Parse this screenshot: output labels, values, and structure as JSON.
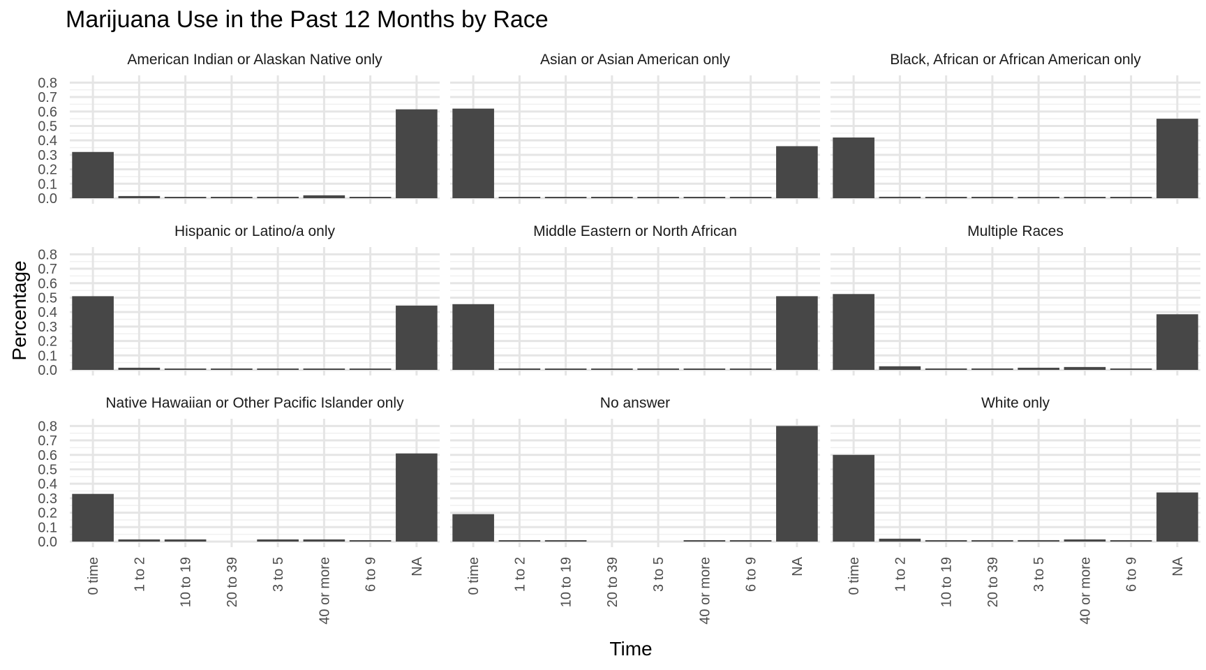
{
  "chart_data": {
    "type": "bar",
    "title": "Marijuana Use in the Past 12 Months by Race",
    "xlabel": "Time",
    "ylabel": "Percentage",
    "ylim": [
      0,
      0.85
    ],
    "yticks": [
      "0.0",
      "0.1",
      "0.2",
      "0.3",
      "0.4",
      "0.5",
      "0.6",
      "0.7",
      "0.8"
    ],
    "categories": [
      "0 time",
      "1 to 2",
      "10 to 19",
      "20 to 39",
      "3 to 5",
      "40 or more",
      "6 to 9",
      "NA"
    ],
    "grid": true,
    "bar_color": "#474747",
    "panels": [
      {
        "name": "American Indian or Alaskan Native only",
        "values": [
          0.32,
          0.015,
          0.005,
          0.004,
          0.01,
          0.02,
          0.005,
          0.615
        ]
      },
      {
        "name": "Asian or Asian American only",
        "values": [
          0.62,
          0.005,
          0.003,
          0.002,
          0.004,
          0.004,
          0.003,
          0.36
        ]
      },
      {
        "name": "Black, African or African American only",
        "values": [
          0.42,
          0.01,
          0.004,
          0.003,
          0.005,
          0.004,
          0.003,
          0.55
        ]
      },
      {
        "name": "Hispanic or Latino/a only",
        "values": [
          0.51,
          0.015,
          0.005,
          0.004,
          0.005,
          0.008,
          0.004,
          0.445
        ]
      },
      {
        "name": "Middle Eastern or North African",
        "values": [
          0.455,
          0.01,
          0.004,
          0.003,
          0.01,
          0.005,
          0.003,
          0.51
        ]
      },
      {
        "name": "Multiple Races",
        "values": [
          0.525,
          0.025,
          0.01,
          0.01,
          0.015,
          0.02,
          0.01,
          0.385
        ]
      },
      {
        "name": "Native Hawaiian or Other Pacific Islander only",
        "values": [
          0.33,
          0.015,
          0.015,
          0.0,
          0.015,
          0.015,
          0.005,
          0.61
        ]
      },
      {
        "name": "No answer",
        "values": [
          0.19,
          0.005,
          0.005,
          0.0,
          0.0,
          0.005,
          0.005,
          0.8
        ]
      },
      {
        "name": "White only",
        "values": [
          0.6,
          0.02,
          0.005,
          0.005,
          0.01,
          0.015,
          0.004,
          0.34
        ]
      }
    ]
  }
}
